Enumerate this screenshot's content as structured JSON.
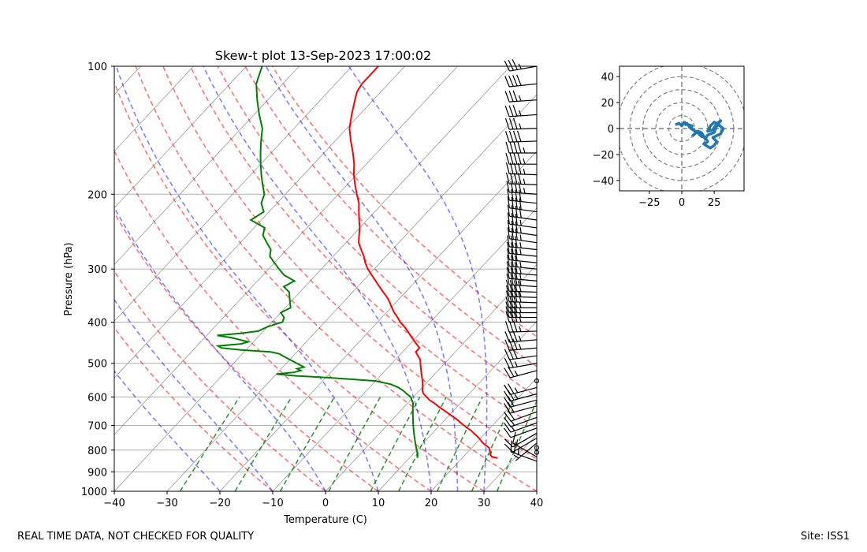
{
  "chart_data": [
    {
      "type": "skewt",
      "title": "Skew-t plot 13-Sep-2023 17:00:02",
      "xlabel": "Temperature (C)",
      "ylabel": "Pressure (hPa)",
      "xlim": [
        -40,
        40
      ],
      "ylim": [
        1000,
        100
      ],
      "y_scale": "log",
      "skew_deg_per_decade": 75,
      "x_ticks": [
        "−40",
        "−30",
        "−20",
        "−10",
        "0",
        "10",
        "20",
        "30",
        "40"
      ],
      "x_tick_values": [
        -40,
        -30,
        -20,
        -10,
        0,
        10,
        20,
        30,
        40
      ],
      "y_ticks": [
        "100",
        "200",
        "300",
        "400",
        "500",
        "600",
        "700",
        "800",
        "900",
        "1000"
      ],
      "y_tick_values": [
        100,
        200,
        300,
        400,
        500,
        600,
        700,
        800,
        900,
        1000
      ],
      "grid": true,
      "dry_adiabats_theta_C": [
        -10,
        0,
        10,
        20,
        30,
        40,
        50,
        60,
        70,
        80,
        90
      ],
      "moist_adiabats_start_C": [
        -20,
        -10,
        0,
        10,
        20,
        25,
        30
      ],
      "mixing_ratio_lines_gkg": [
        0.4,
        1,
        2,
        4,
        7,
        10,
        16,
        24,
        32
      ],
      "isotherm_spacing_C": 10,
      "temperature_profile": {
        "color": "#ff0000",
        "p": [
          835,
          830,
          820,
          810,
          800,
          790,
          780,
          770,
          760,
          750,
          740,
          730,
          720,
          710,
          700,
          690,
          680,
          670,
          660,
          650,
          640,
          630,
          620,
          610,
          600,
          590,
          580,
          570,
          560,
          550,
          540,
          530,
          520,
          510,
          500,
          490,
          480,
          470,
          460,
          450,
          440,
          430,
          420,
          410,
          400,
          390,
          380,
          370,
          360,
          350,
          340,
          330,
          320,
          310,
          300,
          290,
          280,
          270,
          260,
          250,
          240,
          230,
          220,
          210,
          200,
          190,
          180,
          170,
          160,
          150,
          140,
          130,
          120,
          115,
          110,
          105,
          100
        ],
        "t": [
          26.7,
          25.5,
          24.7,
          24.5,
          23.8,
          23.3,
          22.3,
          21.3,
          20.5,
          19.7,
          18.8,
          17.8,
          16.9,
          15.7,
          14.6,
          13.5,
          12.5,
          11.3,
          10.0,
          8.8,
          7.5,
          6.2,
          5.0,
          3.6,
          2.5,
          1.4,
          0.6,
          0.1,
          -0.5,
          -1.1,
          -1.8,
          -2.5,
          -3.2,
          -3.9,
          -4.6,
          -5.3,
          -6.4,
          -7.5,
          -7.5,
          -8.8,
          -10.1,
          -11.4,
          -12.7,
          -14.1,
          -15.7,
          -17.0,
          -18.5,
          -19.8,
          -21.1,
          -22.5,
          -24.2,
          -25.9,
          -27.6,
          -29.4,
          -31.2,
          -32.8,
          -34.2,
          -35.9,
          -37.6,
          -38.8,
          -40.0,
          -41.5,
          -43.0,
          -44.5,
          -46.5,
          -48.5,
          -50.5,
          -52.3,
          -54.5,
          -57.0,
          -59.5,
          -61.5,
          -63.5,
          -64.5,
          -65.0,
          -65.0,
          -65.0
        ]
      },
      "dewpoint_profile": {
        "color": "#008000",
        "p": [
          835,
          820,
          800,
          780,
          760,
          740,
          720,
          700,
          680,
          660,
          640,
          620,
          600,
          590,
          580,
          570,
          560,
          550,
          545,
          540,
          535,
          530,
          525,
          520,
          515,
          510,
          505,
          500,
          495,
          490,
          485,
          480,
          475,
          470,
          465,
          460,
          455,
          450,
          445,
          440,
          435,
          430,
          425,
          420,
          410,
          400,
          390,
          380,
          370,
          360,
          350,
          340,
          330,
          320,
          310,
          300,
          290,
          280,
          270,
          260,
          250,
          240,
          230,
          220,
          210,
          200,
          190,
          180,
          170,
          160,
          150,
          140,
          130,
          120,
          110,
          105,
          100
        ],
        "td": [
          11.5,
          11.0,
          10.0,
          9.0,
          8.0,
          7.0,
          6.0,
          5.0,
          4.0,
          3.0,
          2.0,
          1.0,
          -0.5,
          -1.8,
          -3.0,
          -4.5,
          -6.5,
          -10.0,
          -15.0,
          -20.0,
          -26.0,
          -30.0,
          -27.0,
          -26.0,
          -27.0,
          -26.0,
          -27.0,
          -28.0,
          -29.0,
          -30.0,
          -31.0,
          -32.0,
          -33.0,
          -35.0,
          -41.0,
          -45.0,
          -46.0,
          -42.0,
          -41.0,
          -43.0,
          -45.0,
          -48.0,
          -44.0,
          -41.0,
          -40.0,
          -38.0,
          -38.5,
          -40.0,
          -39.0,
          -40.0,
          -41.0,
          -42.0,
          -44.0,
          -43.0,
          -46.0,
          -48.0,
          -50.0,
          -52.0,
          -53.0,
          -55.0,
          -57.0,
          -58.0,
          -62.0,
          -61.0,
          -63.0,
          -64.0,
          -66.0,
          -68.0,
          -70.0,
          -72.0,
          -74.0,
          -76.0,
          -79.0,
          -82.0,
          -85.0,
          -86.0,
          -87.0
        ]
      },
      "wind_barbs": {
        "color": "#000000",
        "p": [
          850,
          830,
          810,
          790,
          770,
          750,
          730,
          710,
          690,
          670,
          650,
          630,
          610,
          590,
          570,
          550,
          520,
          500,
          480,
          460,
          440,
          420,
          400,
          390,
          380,
          370,
          360,
          350,
          340,
          330,
          320,
          310,
          300,
          290,
          280,
          270,
          260,
          250,
          240,
          230,
          220,
          210,
          200,
          190,
          180,
          170,
          160,
          150,
          140,
          130,
          120,
          110,
          100
        ],
        "speed_kt": [
          25,
          15,
          0,
          0,
          5,
          10,
          10,
          10,
          15,
          15,
          20,
          20,
          20,
          25,
          25,
          0,
          25,
          25,
          30,
          35,
          35,
          35,
          35,
          35,
          35,
          35,
          40,
          35,
          40,
          35,
          35,
          35,
          35,
          30,
          35,
          35,
          35,
          35,
          35,
          40,
          40,
          40,
          45,
          45,
          45,
          45,
          45,
          40,
          35,
          35,
          35,
          40,
          35
        ],
        "dir_deg": [
          290,
          300,
          0,
          0,
          230,
          240,
          240,
          250,
          250,
          250,
          250,
          255,
          255,
          255,
          255,
          0,
          255,
          260,
          262,
          265,
          265,
          268,
          270,
          270,
          270,
          270,
          272,
          272,
          272,
          274,
          275,
          275,
          276,
          276,
          276,
          276,
          278,
          278,
          278,
          278,
          278,
          276,
          274,
          272,
          272,
          270,
          270,
          268,
          268,
          266,
          266,
          264,
          260
        ]
      }
    },
    {
      "type": "hodograph",
      "x_ticks": [
        "−25",
        "0",
        "25"
      ],
      "x_tick_values": [
        -25,
        0,
        25
      ],
      "y_ticks": [
        "−40",
        "−20",
        "0",
        "20",
        "40"
      ],
      "y_tick_values": [
        -40,
        -20,
        0,
        20,
        40
      ],
      "xlim": [
        -48,
        48
      ],
      "ylim": [
        -48,
        48
      ],
      "rings": [
        10,
        20,
        30,
        40,
        50
      ],
      "line_color": "#1f77b4",
      "u": [
        -5,
        -2,
        0,
        2,
        3,
        4,
        6,
        5,
        8,
        7,
        12,
        15,
        18,
        20,
        17,
        22,
        25,
        27,
        24,
        28,
        30,
        32,
        28,
        25,
        22,
        20,
        24,
        27,
        30,
        27,
        25,
        20,
        18,
        17,
        15,
        12,
        10,
        8
      ],
      "v": [
        3,
        4,
        2,
        5,
        3,
        4,
        1,
        3,
        2,
        0,
        -3,
        -6,
        -7,
        -10,
        -12,
        -15,
        -13,
        -10,
        -7,
        -5,
        -4,
        0,
        3,
        5,
        2,
        -2,
        -1,
        4,
        6,
        2,
        -3,
        -5,
        -8,
        -6,
        -3,
        -2,
        -4,
        -6
      ]
    }
  ],
  "footer": {
    "left": "REAL TIME DATA, NOT CHECKED FOR QUALITY",
    "right": "Site: ISS1"
  }
}
